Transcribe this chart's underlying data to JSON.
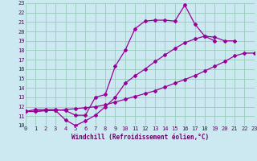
{
  "xlabel": "Windchill (Refroidissement éolien,°C)",
  "bg_color": "#cce8f0",
  "grid_color": "#99ccbb",
  "line_color": "#990099",
  "xmin": 0,
  "xmax": 23,
  "ymin": 10,
  "ymax": 23,
  "c1x": [
    0,
    1,
    2,
    3,
    4,
    5,
    6,
    7,
    8,
    9,
    10,
    11,
    12,
    13,
    14,
    15,
    16,
    17,
    18,
    19
  ],
  "c1y": [
    11.5,
    11.7,
    11.7,
    11.7,
    11.6,
    11.1,
    11.1,
    13.0,
    13.3,
    16.3,
    18.0,
    20.3,
    21.1,
    21.2,
    21.2,
    21.1,
    22.8,
    20.8,
    19.5,
    19.0
  ],
  "c2x": [
    0,
    1,
    2,
    3,
    4,
    5,
    6,
    7,
    8,
    9,
    10,
    11,
    12,
    13,
    14,
    15,
    16,
    17,
    18,
    19,
    20,
    21,
    22,
    23
  ],
  "c2y": [
    11.5,
    11.5,
    11.6,
    11.6,
    11.7,
    11.8,
    11.9,
    12.0,
    12.2,
    12.5,
    12.8,
    13.1,
    13.4,
    13.7,
    14.1,
    14.5,
    14.9,
    15.3,
    15.8,
    16.3,
    16.8,
    17.4,
    17.7,
    17.7
  ],
  "c3x": [
    0,
    1,
    2,
    3,
    4,
    5,
    6,
    7,
    8,
    9,
    10,
    11,
    12,
    13,
    14,
    15,
    16,
    17,
    18,
    19,
    20,
    21
  ],
  "c3y": [
    11.5,
    11.5,
    11.6,
    11.6,
    10.6,
    10.0,
    10.5,
    11.1,
    12.0,
    13.0,
    14.5,
    15.3,
    16.0,
    16.8,
    17.5,
    18.2,
    18.8,
    19.2,
    19.5,
    19.4,
    19.0,
    19.0
  ]
}
